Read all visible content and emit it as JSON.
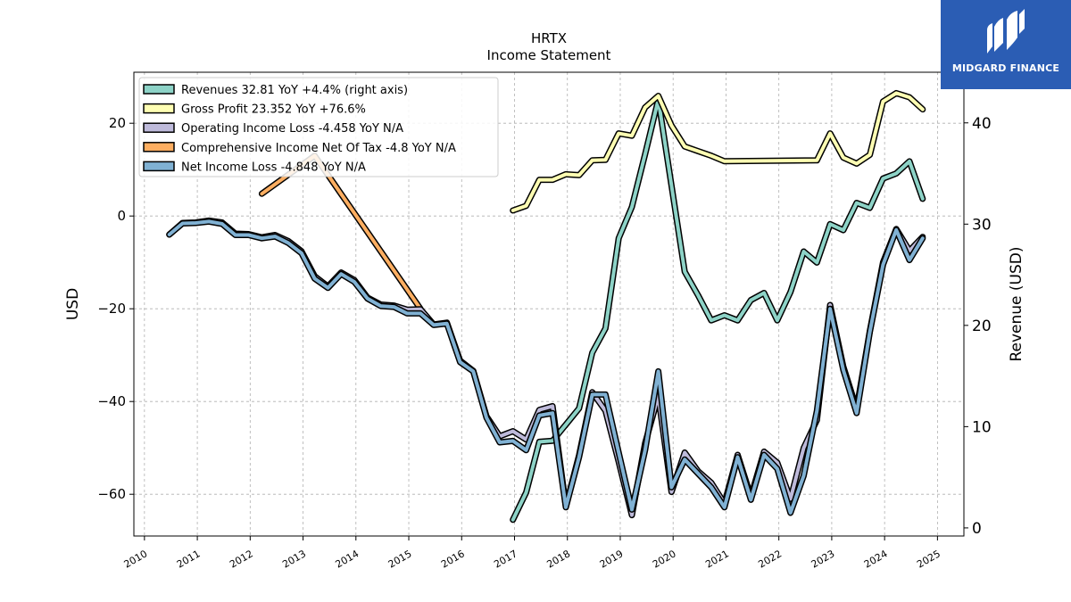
{
  "brand": {
    "name": "MIDGARD FINANCE",
    "bg": "#2b5db4"
  },
  "chart_data": {
    "type": "line",
    "title": "HRTX",
    "subtitle": "Income Statement",
    "ylabel": "USD",
    "y2label": "Revenue (USD)",
    "ylim": [
      -69,
      31
    ],
    "y2lim": [
      -0.8,
      45
    ],
    "yticks": [
      20,
      0,
      -20,
      -40,
      -60
    ],
    "y2ticks": [
      40,
      30,
      20,
      10,
      0
    ],
    "xlim": [
      2009.8,
      2025.5
    ],
    "xticks": [
      2010,
      2011,
      2012,
      2013,
      2014,
      2015,
      2016,
      2017,
      2018,
      2019,
      2020,
      2021,
      2022,
      2023,
      2024,
      2025
    ],
    "grid": true,
    "legend_position": "top-left",
    "series": [
      {
        "name": "Revenues",
        "legend": "Revenues  32.81 YoY +4.4% (right axis)",
        "color": "#8dd3c7",
        "axis": "right",
        "x": [
          2016.97,
          2017.22,
          2017.47,
          2017.72,
          2017.97,
          2018.22,
          2018.47,
          2018.72,
          2018.97,
          2019.22,
          2019.47,
          2019.72,
          2019.97,
          2020.22,
          2020.47,
          2020.72,
          2020.97,
          2021.22,
          2021.47,
          2021.72,
          2021.97,
          2022.22,
          2022.47,
          2022.72,
          2022.97,
          2023.22,
          2023.47,
          2023.72,
          2023.97,
          2024.22,
          2024.47,
          2024.72
        ],
        "values": [
          0.8,
          3.5,
          8.5,
          8.6,
          10.2,
          11.8,
          17.3,
          19.7,
          28.6,
          31.7,
          36.9,
          42.3,
          33.8,
          25.3,
          23.0,
          20.5,
          21.0,
          20.5,
          22.5,
          23.2,
          20.5,
          23.3,
          27.3,
          26.2,
          30.0,
          29.4,
          32.1,
          31.6,
          34.5,
          35.0,
          36.2,
          32.5
        ]
      },
      {
        "name": "Gross Profit",
        "legend": "Gross Profit  23.352 YoY +76.6%",
        "color": "#ffffb3",
        "axis": "left",
        "x": [
          2016.97,
          2017.22,
          2017.47,
          2017.72,
          2017.97,
          2018.22,
          2018.47,
          2018.72,
          2018.97,
          2019.22,
          2019.47,
          2019.72,
          2019.97,
          2020.22,
          2020.47,
          2020.72,
          2020.97,
          2022.72,
          2022.97,
          2023.22,
          2023.47,
          2023.72,
          2023.97,
          2024.22,
          2024.47,
          2024.72
        ],
        "values": [
          1.2,
          2.2,
          7.8,
          7.8,
          9.0,
          8.8,
          12.0,
          12.1,
          17.8,
          17.3,
          23.4,
          25.9,
          19.5,
          15.0,
          14.0,
          13.0,
          11.8,
          12.0,
          17.8,
          12.6,
          11.3,
          13.2,
          24.7,
          26.5,
          25.6,
          23.0
        ]
      },
      {
        "name": "Operating Income Loss",
        "legend": "Operating Income Loss  -4.458 YoY N/A",
        "color": "#bebada",
        "axis": "left",
        "x": [
          2010.47,
          2010.72,
          2010.97,
          2011.22,
          2011.47,
          2011.72,
          2011.97,
          2012.22,
          2012.47,
          2012.72,
          2012.97,
          2013.22,
          2013.47,
          2013.72,
          2013.97,
          2014.22,
          2014.47,
          2014.72,
          2014.97,
          2015.22,
          2015.47,
          2015.72,
          2015.97,
          2016.22,
          2016.47,
          2016.72,
          2016.97,
          2017.22,
          2017.47,
          2017.72,
          2017.97,
          2018.22,
          2018.47,
          2018.72,
          2018.97,
          2019.22,
          2019.47,
          2019.72,
          2019.97,
          2020.22,
          2020.47,
          2020.72,
          2020.97,
          2021.22,
          2021.47,
          2021.72,
          2021.97,
          2022.22,
          2022.47,
          2022.72,
          2022.97,
          2023.22,
          2023.47,
          2023.72,
          2023.97,
          2024.22,
          2024.47,
          2024.72
        ],
        "values": [
          -4.0,
          -1.5,
          -1.4,
          -1.0,
          -1.4,
          -3.8,
          -3.9,
          -4.6,
          -4.1,
          -5.4,
          -7.6,
          -13.0,
          -15.2,
          -12.2,
          -13.8,
          -17.6,
          -19.1,
          -19.3,
          -20.2,
          -20.1,
          -23.4,
          -23.0,
          -31.2,
          -33.4,
          -43.2,
          -47.5,
          -46.4,
          -48.2,
          -41.8,
          -41.0,
          -62.6,
          -51.6,
          -38.0,
          -42.0,
          -53.0,
          -64.5,
          -49.0,
          -38.8,
          -59.5,
          -51.0,
          -55.0,
          -57.5,
          -62.0,
          -51.5,
          -60.5,
          -50.8,
          -53.2,
          -61.0,
          -50.0,
          -44.0,
          -19.2,
          -32.5,
          -41.6,
          -24.8,
          -10.0,
          -2.8,
          -7.5,
          -4.5
        ]
      },
      {
        "name": "Comprehensive Income Net Of Tax",
        "legend": "Comprehensive Income Net Of Tax  -4.8 YoY N/A",
        "color": "#fdae61",
        "axis": "left",
        "x": [
          2012.22,
          2013.22,
          2015.22
        ],
        "values": [
          4.8,
          13.0,
          -20.0
        ]
      },
      {
        "name": "Net Income Loss",
        "legend": "Net Income Loss  -4.848 YoY N/A",
        "color": "#80b1d3",
        "axis": "left",
        "x": [
          2010.47,
          2010.72,
          2010.97,
          2011.22,
          2011.47,
          2011.72,
          2011.97,
          2012.22,
          2012.47,
          2012.72,
          2012.97,
          2013.22,
          2013.47,
          2013.72,
          2013.97,
          2014.22,
          2014.47,
          2014.72,
          2014.97,
          2015.22,
          2015.47,
          2015.72,
          2015.97,
          2016.22,
          2016.47,
          2016.72,
          2016.97,
          2017.22,
          2017.47,
          2017.72,
          2017.97,
          2018.22,
          2018.47,
          2018.72,
          2018.97,
          2019.22,
          2019.47,
          2019.72,
          2019.97,
          2020.22,
          2020.47,
          2020.72,
          2020.97,
          2021.22,
          2021.47,
          2021.72,
          2021.97,
          2022.22,
          2022.47,
          2022.72,
          2022.97,
          2023.22,
          2023.47,
          2023.72,
          2023.97,
          2024.22,
          2024.47,
          2024.72
        ],
        "values": [
          -4.0,
          -1.6,
          -1.5,
          -1.2,
          -1.7,
          -4.1,
          -4.1,
          -4.8,
          -4.4,
          -5.8,
          -8.0,
          -13.5,
          -15.5,
          -12.5,
          -14.2,
          -17.8,
          -19.4,
          -19.6,
          -21.0,
          -21.0,
          -23.5,
          -23.2,
          -31.5,
          -33.5,
          -43.5,
          -48.8,
          -48.5,
          -50.5,
          -43.0,
          -42.5,
          -62.8,
          -52.0,
          -38.5,
          -38.5,
          -51.0,
          -63.3,
          -50.5,
          -33.5,
          -58.5,
          -52.5,
          -55.5,
          -58.5,
          -62.8,
          -52.0,
          -61.2,
          -51.5,
          -54.5,
          -64.0,
          -56.0,
          -42.0,
          -20.0,
          -33.2,
          -42.5,
          -25.0,
          -10.5,
          -3.0,
          -9.5,
          -4.8
        ]
      }
    ]
  }
}
